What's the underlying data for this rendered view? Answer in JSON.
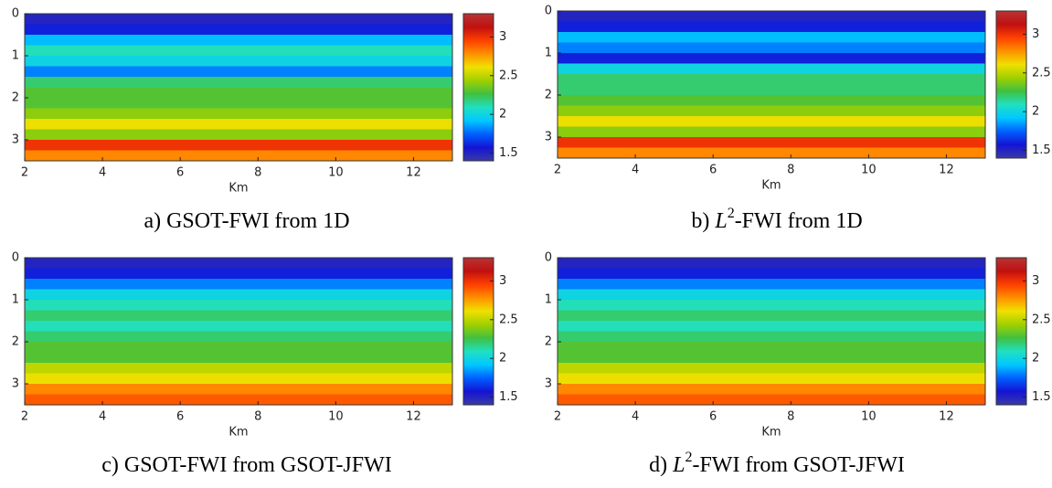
{
  "chart_data": [
    {
      "type": "heatmap",
      "caption": [
        {
          "text": "a) GSOT-FWI from 1D"
        }
      ],
      "xlabel": "Km",
      "xlim": [
        2,
        13
      ],
      "xticks": [
        2,
        4,
        6,
        8,
        10,
        12
      ],
      "ylim": [
        0,
        3.5
      ],
      "yticks": [
        0,
        1,
        2,
        3
      ],
      "y": [
        0,
        0.25,
        0.5,
        0.75,
        1.0,
        1.25,
        1.5,
        1.75,
        2.0,
        2.25,
        2.5,
        2.75,
        3.0,
        3.25
      ],
      "values": [
        1.5,
        1.6,
        1.9,
        2.1,
        2.0,
        1.8,
        2.2,
        2.3,
        2.3,
        2.4,
        2.6,
        2.4,
        3.0,
        2.8
      ],
      "clim": [
        1.4,
        3.3
      ],
      "cticks": [
        1.5,
        2,
        2.5,
        3
      ],
      "colormap": [
        "#3a3aa8",
        "#1414d4",
        "#0060ff",
        "#00c8ff",
        "#20e0c0",
        "#40c040",
        "#a0d000",
        "#f0e000",
        "#ff9000",
        "#ff4000",
        "#c01010",
        "#b83434"
      ]
    },
    {
      "type": "heatmap",
      "caption": [
        {
          "text": "b) "
        },
        {
          "text": "L",
          "style": "italic"
        },
        {
          "text": "2",
          "style": "sup"
        },
        {
          "text": "-FWI from 1D"
        }
      ],
      "xlabel": "Km",
      "xlim": [
        2,
        13
      ],
      "xticks": [
        2,
        4,
        6,
        8,
        10,
        12
      ],
      "ylim": [
        0,
        3.5
      ],
      "yticks": [
        0,
        1,
        2,
        3
      ],
      "y": [
        0,
        0.25,
        0.5,
        0.75,
        1.0,
        1.25,
        1.5,
        1.75,
        2.0,
        2.25,
        2.5,
        2.75,
        3.0,
        3.25
      ],
      "values": [
        1.5,
        1.6,
        1.9,
        1.8,
        1.6,
        2.0,
        2.2,
        2.2,
        2.3,
        2.4,
        2.6,
        2.4,
        3.0,
        2.8
      ],
      "clim": [
        1.4,
        3.3
      ],
      "cticks": [
        1.5,
        2,
        2.5,
        3
      ],
      "colormap": [
        "#3a3aa8",
        "#1414d4",
        "#0060ff",
        "#00c8ff",
        "#20e0c0",
        "#40c040",
        "#a0d000",
        "#f0e000",
        "#ff9000",
        "#ff4000",
        "#c01010",
        "#b83434"
      ]
    },
    {
      "type": "heatmap",
      "caption": [
        {
          "text": "c) GSOT-FWI from GSOT-JFWI"
        }
      ],
      "xlabel": "Km",
      "xlim": [
        2,
        13
      ],
      "xticks": [
        2,
        4,
        6,
        8,
        10,
        12
      ],
      "ylim": [
        0,
        3.5
      ],
      "yticks": [
        0,
        1,
        2,
        3
      ],
      "y": [
        0,
        0.25,
        0.5,
        0.75,
        1.0,
        1.25,
        1.5,
        1.75,
        2.0,
        2.25,
        2.5,
        2.75,
        3.0,
        3.25
      ],
      "values": [
        1.5,
        1.6,
        1.8,
        2.0,
        2.1,
        2.2,
        2.1,
        2.2,
        2.3,
        2.3,
        2.5,
        2.6,
        2.8,
        2.9
      ],
      "clim": [
        1.4,
        3.3
      ],
      "cticks": [
        1.5,
        2,
        2.5,
        3
      ],
      "colormap": [
        "#3a3aa8",
        "#1414d4",
        "#0060ff",
        "#00c8ff",
        "#20e0c0",
        "#40c040",
        "#a0d000",
        "#f0e000",
        "#ff9000",
        "#ff4000",
        "#c01010",
        "#b83434"
      ]
    },
    {
      "type": "heatmap",
      "caption": [
        {
          "text": "d) "
        },
        {
          "text": "L",
          "style": "italic"
        },
        {
          "text": "2",
          "style": "sup"
        },
        {
          "text": "-FWI from GSOT-JFWI"
        }
      ],
      "xlabel": "Km",
      "xlim": [
        2,
        13
      ],
      "xticks": [
        2,
        4,
        6,
        8,
        10,
        12
      ],
      "ylim": [
        0,
        3.5
      ],
      "yticks": [
        0,
        1,
        2,
        3
      ],
      "y": [
        0,
        0.25,
        0.5,
        0.75,
        1.0,
        1.25,
        1.5,
        1.75,
        2.0,
        2.25,
        2.5,
        2.75,
        3.0,
        3.25
      ],
      "values": [
        1.5,
        1.6,
        1.8,
        2.0,
        2.1,
        2.2,
        2.1,
        2.2,
        2.3,
        2.3,
        2.5,
        2.6,
        2.8,
        2.9
      ],
      "clim": [
        1.4,
        3.3
      ],
      "cticks": [
        1.5,
        2,
        2.5,
        3
      ],
      "colormap": [
        "#3a3aa8",
        "#1414d4",
        "#0060ff",
        "#00c8ff",
        "#20e0c0",
        "#40c040",
        "#a0d000",
        "#f0e000",
        "#ff9000",
        "#ff4000",
        "#c01010",
        "#b83434"
      ]
    }
  ]
}
